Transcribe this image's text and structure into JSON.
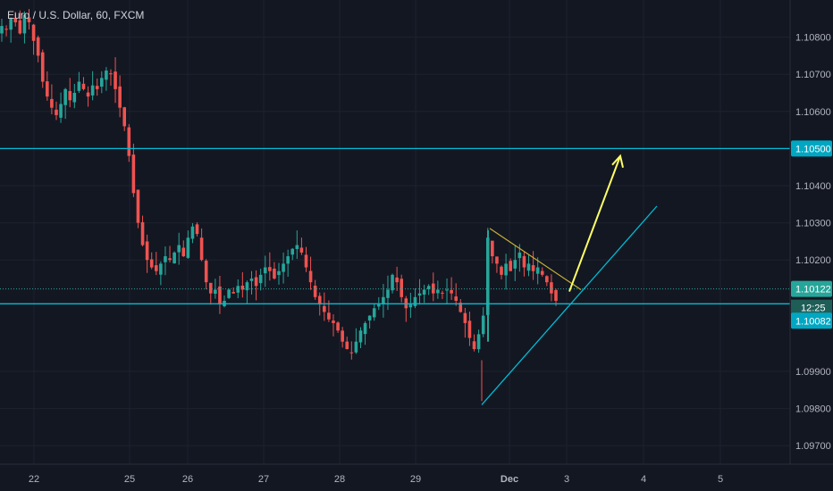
{
  "chart_data": {
    "type": "candlestick",
    "title": "Euro / U.S. Dollar, 60, FXCM",
    "y_range": [
      1.0965,
      1.109
    ],
    "y_ticks": [
      "1.10800",
      "1.10700",
      "1.10600",
      "1.10400",
      "1.10300",
      "1.10200",
      "1.09900",
      "1.09800",
      "1.09700"
    ],
    "x_ticks": [
      "22",
      "25",
      "26",
      "27",
      "28",
      "29",
      "Dec",
      "3",
      "4",
      "5"
    ],
    "price_labels": {
      "resistance": "1.10500",
      "current": "1.10122",
      "countdown": "12:25",
      "support": "1.10082"
    },
    "horizontal_levels": {
      "resistance": 1.105,
      "current": 1.10122,
      "support": 1.10082
    },
    "grid": true,
    "colors": {
      "background": "#131722",
      "up": "#26a69a",
      "down": "#ef5350",
      "level_line": "#00bcd4",
      "arrow": "#ffff66",
      "axis_text": "#b2b5be",
      "grid": "#1e222d"
    },
    "prices": [
      1.1083,
      1.1082,
      1.1085,
      1.1084,
      1.1081,
      1.1086,
      1.1084,
      1.1079,
      1.1075,
      1.1068,
      1.1064,
      1.1061,
      1.1059,
      1.1062,
      1.1066,
      1.1063,
      1.1065,
      1.1068,
      1.1066,
      1.1064,
      1.1067,
      1.1066,
      1.1069,
      1.1071,
      1.107,
      1.1066,
      1.1061,
      1.1056,
      1.1048,
      1.1038,
      1.103,
      1.1024,
      1.102,
      1.1018,
      1.1017,
      1.1019,
      1.1021,
      1.102,
      1.1022,
      1.1024,
      1.1021,
      1.1026,
      1.1029,
      1.1027,
      1.102,
      1.1014,
      1.1011,
      1.1012,
      1.1008,
      1.1009,
      1.1012,
      1.1011,
      1.1013,
      1.1012,
      1.1014,
      1.1015,
      1.1013,
      1.1016,
      1.1018,
      1.1017,
      1.1015,
      1.1017,
      1.1019,
      1.1021,
      1.1023,
      1.1024,
      1.1022,
      1.1018,
      1.1014,
      1.101,
      1.1008,
      1.1006,
      1.1004,
      1.1003,
      1.1001,
      1.0998,
      1.0996,
      1.0995,
      1.0998,
      1.1001,
      1.1003,
      1.1005,
      1.1007,
      1.1008,
      1.101,
      1.1012,
      1.1016,
      1.1014,
      1.101,
      1.1007,
      1.1008,
      1.101,
      1.1011,
      1.1012,
      1.1013,
      1.1011,
      1.1012,
      1.1011,
      1.1012,
      1.1011,
      1.1009,
      1.1006,
      1.1003,
      1.0999,
      1.0996,
      1.1,
      1.1005,
      1.1026,
      1.1021,
      1.1019,
      1.1016,
      1.1019,
      1.1017,
      1.102,
      1.1022,
      1.1018,
      1.1019,
      1.1017,
      1.1018,
      1.1016,
      1.1014,
      1.1011,
      1.1009
    ],
    "trendlines": [
      {
        "name": "resistance-line",
        "from": [
          "Nov 29 21:00",
          1.10285
        ],
        "to": [
          "Dec 2 14:00",
          1.1012
        ]
      },
      {
        "name": "support-line",
        "from": [
          "Nov 29 20:00",
          1.0981
        ],
        "to": [
          "Dec 3 23:00",
          1.10345
        ]
      }
    ],
    "projection_arrow": {
      "from": [
        "Dec 2 11:00",
        1.10115
      ],
      "to": [
        "Dec 3 14:00",
        1.1048
      ]
    }
  }
}
